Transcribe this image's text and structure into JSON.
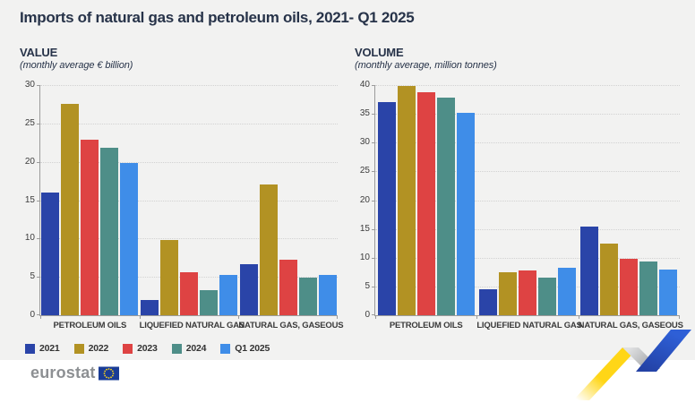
{
  "title": "Imports of natural gas and petroleum oils, 2021- Q1 2025",
  "chart_data": [
    {
      "type": "bar",
      "title": "VALUE",
      "subtitle": "(monthly average € billion)",
      "categories": [
        "PETROLEUM OILS",
        "LIQUEFIED NATURAL GAS",
        "NATURAL GAS, GASEOUS"
      ],
      "series": [
        {
          "name": "2021",
          "color": "#2A44A8",
          "values": [
            16.0,
            2.0,
            6.6
          ]
        },
        {
          "name": "2022",
          "color": "#B29223",
          "values": [
            27.6,
            9.8,
            17.0
          ]
        },
        {
          "name": "2023",
          "color": "#DE4343",
          "values": [
            22.9,
            5.6,
            7.2
          ]
        },
        {
          "name": "2024",
          "color": "#4E8E88",
          "values": [
            21.8,
            3.3,
            4.9
          ]
        },
        {
          "name": "Q1 2025",
          "color": "#3F8DE8",
          "values": [
            19.8,
            5.2,
            5.3
          ]
        }
      ],
      "ylim": [
        0,
        30
      ],
      "ytick_step": 5,
      "grid": "horizontal-dotted",
      "legend_position": "bottom-left-shared"
    },
    {
      "type": "bar",
      "title": "VOLUME",
      "subtitle": "(monthly average, million tonnes)",
      "categories": [
        "PETROLEUM OILS",
        "LIQUEFIED NATURAL GAS",
        "NATURAL GAS, GASEOUS"
      ],
      "series": [
        {
          "name": "2021",
          "color": "#2A44A8",
          "values": [
            37.0,
            4.5,
            15.4
          ]
        },
        {
          "name": "2022",
          "color": "#B29223",
          "values": [
            39.8,
            7.5,
            12.5
          ]
        },
        {
          "name": "2023",
          "color": "#DE4343",
          "values": [
            38.7,
            7.8,
            9.8
          ]
        },
        {
          "name": "2024",
          "color": "#4E8E88",
          "values": [
            37.8,
            6.6,
            9.4
          ]
        },
        {
          "name": "Q1 2025",
          "color": "#3F8DE8",
          "values": [
            35.1,
            8.3,
            8.0
          ]
        }
      ],
      "ylim": [
        0,
        40
      ],
      "ytick_step": 5,
      "grid": "horizontal-dotted",
      "legend_position": "bottom-left-shared"
    }
  ],
  "legend": {
    "items": [
      {
        "label": "2021",
        "color": "#2A44A8"
      },
      {
        "label": "2022",
        "color": "#B29223"
      },
      {
        "label": "2023",
        "color": "#DE4343"
      },
      {
        "label": "2024",
        "color": "#4E8E88"
      },
      {
        "label": "Q1 2025",
        "color": "#3F8DE8"
      }
    ]
  },
  "footer": {
    "brand": "eurostat"
  },
  "colors": {
    "panel_background": "#F2F2F1",
    "heading_text": "#273349",
    "axis_line": "#9B9B9B",
    "gridline": "#D2D2D2",
    "eu_flag_blue": "#1A3C96",
    "eu_flag_stars": "#FFD617",
    "ribbon_yellow": "#FFD617",
    "ribbon_grey": "#C6C8CA",
    "ribbon_blue": "#2B53CB"
  }
}
